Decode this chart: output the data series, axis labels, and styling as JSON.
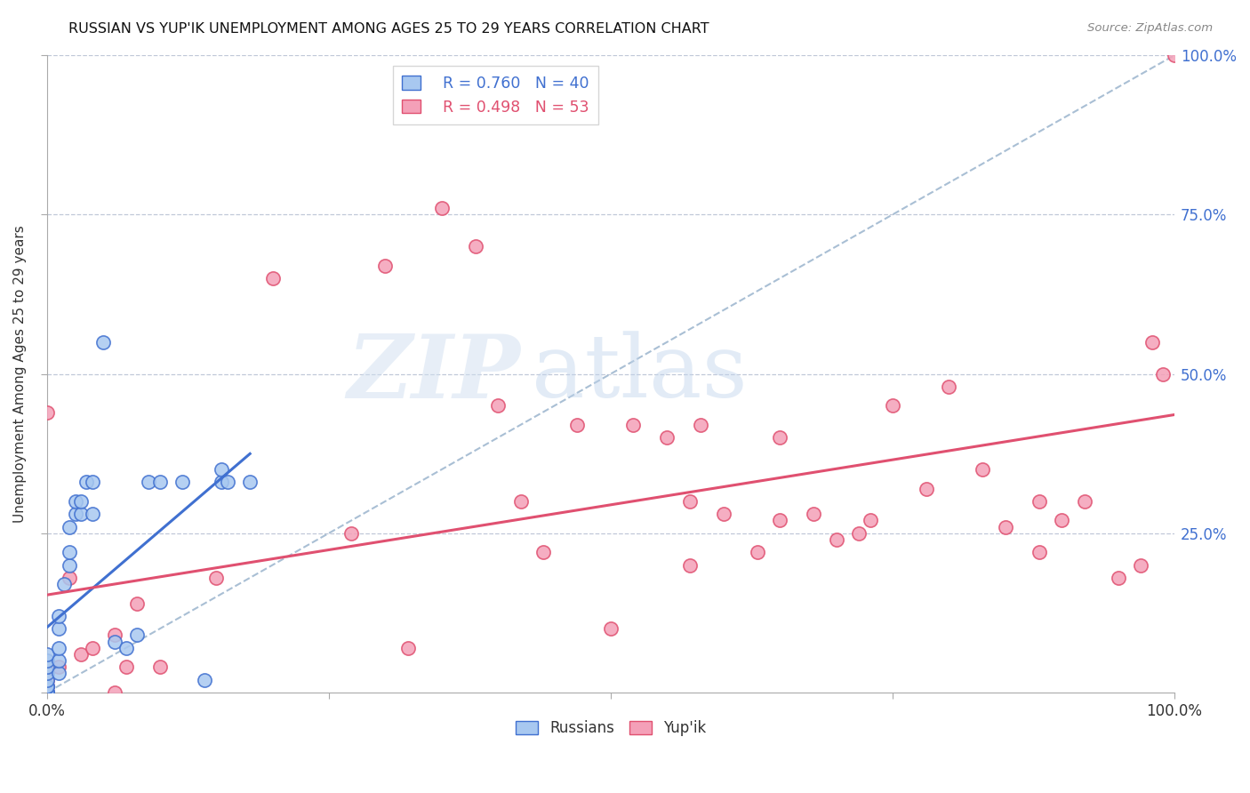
{
  "title": "RUSSIAN VS YUP'IK UNEMPLOYMENT AMONG AGES 25 TO 29 YEARS CORRELATION CHART",
  "source": "Source: ZipAtlas.com",
  "ylabel": "Unemployment Among Ages 25 to 29 years",
  "xlim": [
    0,
    1.0
  ],
  "ylim": [
    0,
    1.0
  ],
  "color_russian": "#A8C8F0",
  "color_yupik": "#F4A0B8",
  "trendline_russian_color": "#4070D0",
  "trendline_yupik_color": "#E05070",
  "diagonal_color": "#A0B8D0",
  "background_color": "#FFFFFF",
  "russian_x": [
    0.0,
    0.0,
    0.0,
    0.0,
    0.0,
    0.0,
    0.0,
    0.0,
    0.0,
    0.0,
    0.0,
    0.0,
    0.01,
    0.01,
    0.01,
    0.01,
    0.01,
    0.015,
    0.02,
    0.02,
    0.02,
    0.025,
    0.025,
    0.03,
    0.03,
    0.035,
    0.04,
    0.04,
    0.05,
    0.06,
    0.07,
    0.08,
    0.09,
    0.1,
    0.12,
    0.14,
    0.155,
    0.155,
    0.16,
    0.18
  ],
  "russian_y": [
    0.0,
    0.0,
    0.0,
    0.0,
    0.0,
    0.01,
    0.01,
    0.02,
    0.03,
    0.04,
    0.05,
    0.06,
    0.03,
    0.05,
    0.07,
    0.1,
    0.12,
    0.17,
    0.2,
    0.22,
    0.26,
    0.28,
    0.3,
    0.28,
    0.3,
    0.33,
    0.28,
    0.33,
    0.55,
    0.08,
    0.07,
    0.09,
    0.33,
    0.33,
    0.33,
    0.02,
    0.33,
    0.35,
    0.33,
    0.33
  ],
  "yupik_x": [
    0.0,
    0.0,
    0.0,
    0.0,
    0.0,
    0.01,
    0.02,
    0.03,
    0.04,
    0.06,
    0.06,
    0.07,
    0.08,
    0.1,
    0.15,
    0.2,
    0.27,
    0.3,
    0.32,
    0.35,
    0.38,
    0.4,
    0.42,
    0.44,
    0.47,
    0.5,
    0.52,
    0.55,
    0.57,
    0.57,
    0.58,
    0.6,
    0.63,
    0.65,
    0.65,
    0.68,
    0.7,
    0.72,
    0.73,
    0.75,
    0.78,
    0.8,
    0.83,
    0.85,
    0.88,
    0.88,
    0.9,
    0.92,
    0.95,
    0.97,
    0.98,
    0.99,
    1.0
  ],
  "yupik_y": [
    0.0,
    0.01,
    0.02,
    0.04,
    0.44,
    0.04,
    0.18,
    0.06,
    0.07,
    0.0,
    0.09,
    0.04,
    0.14,
    0.04,
    0.18,
    0.65,
    0.25,
    0.67,
    0.07,
    0.76,
    0.7,
    0.45,
    0.3,
    0.22,
    0.42,
    0.1,
    0.42,
    0.4,
    0.2,
    0.3,
    0.42,
    0.28,
    0.22,
    0.27,
    0.4,
    0.28,
    0.24,
    0.25,
    0.27,
    0.45,
    0.32,
    0.48,
    0.35,
    0.26,
    0.22,
    0.3,
    0.27,
    0.3,
    0.18,
    0.2,
    0.55,
    0.5,
    1.0
  ]
}
